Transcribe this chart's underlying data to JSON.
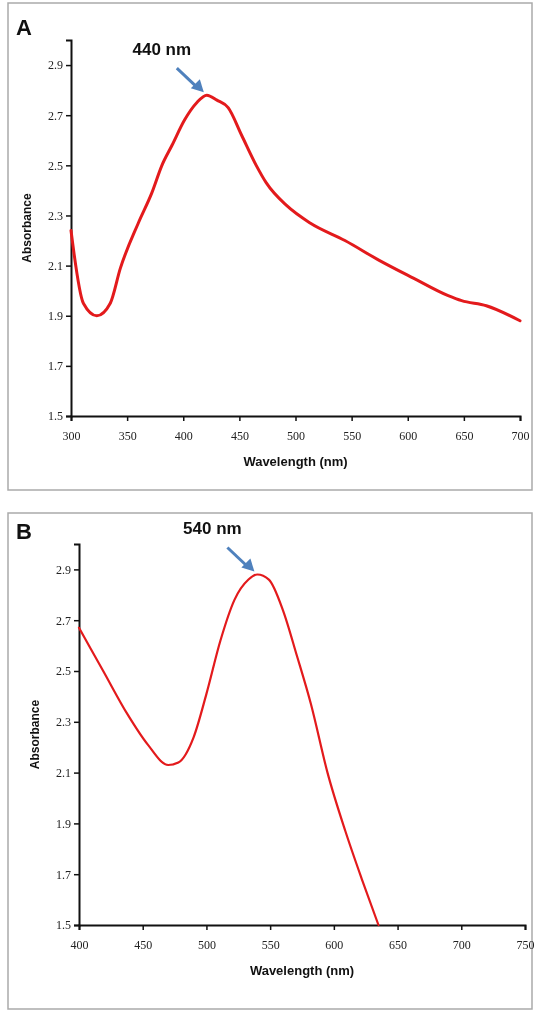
{
  "chart_data": [
    {
      "type": "line",
      "title": "A",
      "xlabel": "Wavelength (nm)",
      "ylabel": "Absorbance",
      "color": "#e31a1c",
      "x": [
        300,
        311,
        323,
        335,
        344,
        360,
        372,
        381,
        390,
        401,
        412,
        421,
        430,
        440,
        452,
        465,
        474,
        492,
        513,
        544,
        575,
        605,
        636,
        648,
        670,
        700
      ],
      "values": [
        2.24,
        1.95,
        1.9,
        1.95,
        2.09,
        2.27,
        2.39,
        2.5,
        2.58,
        2.68,
        2.75,
        2.78,
        2.76,
        2.73,
        2.62,
        2.5,
        2.43,
        2.34,
        2.27,
        2.2,
        2.12,
        2.05,
        1.98,
        1.96,
        1.94,
        1.88
      ],
      "xlim": [
        300,
        700
      ],
      "xticks": [
        300,
        350,
        400,
        450,
        500,
        550,
        600,
        650,
        700
      ],
      "ylim": [
        1.5,
        3.0
      ],
      "yticks": [
        1.5,
        1.7,
        1.9,
        2.1,
        2.3,
        2.5,
        2.7,
        2.9
      ],
      "annotations": [
        {
          "text": "440 nm",
          "x": 421,
          "y": 2.78
        }
      ]
    },
    {
      "type": "line",
      "title": "B",
      "xlabel": "Wavelength (nm)",
      "ylabel": "Absorbance",
      "color": "#e31a1c",
      "x": [
        400,
        419,
        438,
        454,
        470,
        478,
        490,
        500,
        511,
        522,
        533,
        540,
        549,
        560,
        571,
        582,
        595,
        609,
        622,
        635
      ],
      "values": [
        2.67,
        2.5,
        2.33,
        2.21,
        2.13,
        2.14,
        2.24,
        2.41,
        2.62,
        2.78,
        2.86,
        2.88,
        2.86,
        2.74,
        2.56,
        2.37,
        2.1,
        1.87,
        1.68,
        1.5
      ],
      "xlim": [
        400,
        750
      ],
      "xticks": [
        400,
        450,
        500,
        550,
        600,
        650,
        700,
        750
      ],
      "ylim": [
        1.5,
        3.0
      ],
      "yticks": [
        1.5,
        1.7,
        1.9,
        2.1,
        2.3,
        2.5,
        2.7,
        2.9
      ],
      "annotations": [
        {
          "text": "540 nm",
          "x": 540,
          "y": 2.88
        }
      ]
    }
  ]
}
